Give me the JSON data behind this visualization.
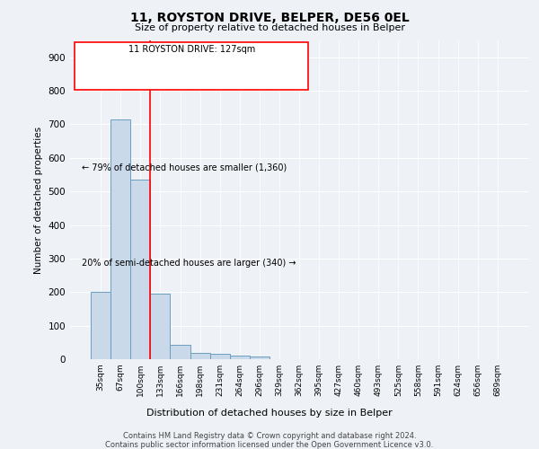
{
  "title": "11, ROYSTON DRIVE, BELPER, DE56 0EL",
  "subtitle": "Size of property relative to detached houses in Belper",
  "xlabel": "Distribution of detached houses by size in Belper",
  "ylabel": "Number of detached properties",
  "bar_labels": [
    "35sqm",
    "67sqm",
    "100sqm",
    "133sqm",
    "166sqm",
    "198sqm",
    "231sqm",
    "264sqm",
    "296sqm",
    "329sqm",
    "362sqm",
    "395sqm",
    "427sqm",
    "460sqm",
    "493sqm",
    "525sqm",
    "558sqm",
    "591sqm",
    "624sqm",
    "656sqm",
    "689sqm"
  ],
  "bar_values": [
    200,
    715,
    535,
    195,
    42,
    20,
    15,
    12,
    8,
    0,
    0,
    0,
    0,
    0,
    0,
    0,
    0,
    0,
    0,
    0,
    0
  ],
  "bar_color": "#c9d9ea",
  "bar_edge_color": "#6a9ec0",
  "ylim": [
    0,
    950
  ],
  "yticks": [
    0,
    100,
    200,
    300,
    400,
    500,
    600,
    700,
    800,
    900
  ],
  "red_line_x": 2.5,
  "annotation_title": "11 ROYSTON DRIVE: 127sqm",
  "annotation_line1": "← 79% of detached houses are smaller (1,360)",
  "annotation_line2": "20% of semi-detached houses are larger (340) →",
  "footer_line1": "Contains HM Land Registry data © Crown copyright and database right 2024.",
  "footer_line2": "Contains public sector information licensed under the Open Government Licence v3.0.",
  "background_color": "#eef2f7",
  "grid_color": "#ffffff"
}
